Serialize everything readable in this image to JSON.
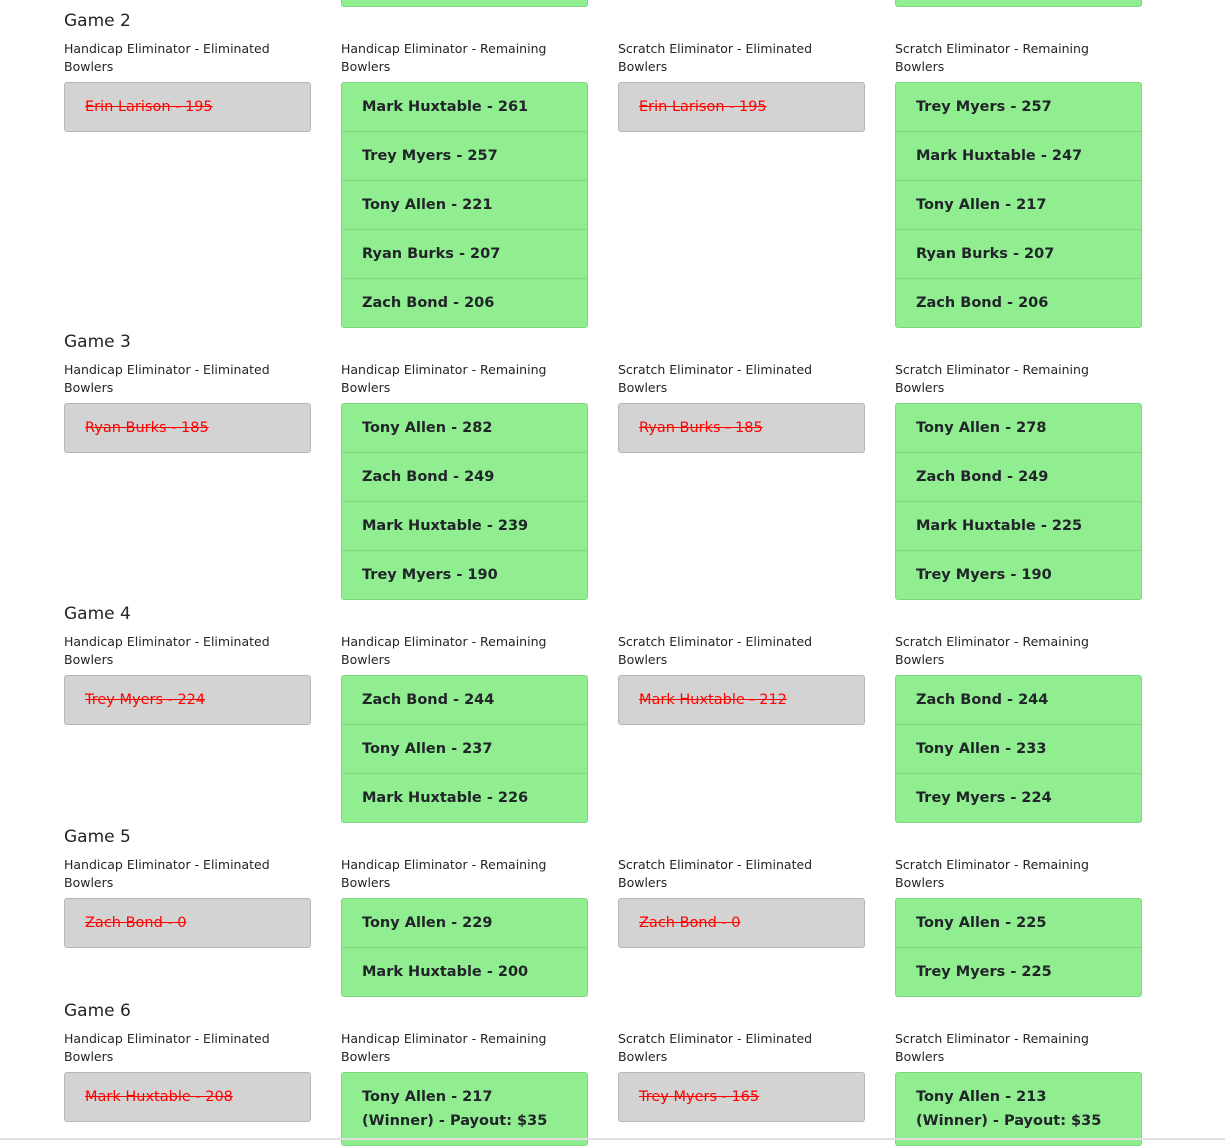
{
  "labels": {
    "h_elim": "Handicap Eliminator - Eliminated Bowlers",
    "h_rem": "Handicap Eliminator - Remaining Bowlers",
    "s_elim": "Scratch Eliminator - Eliminated Bowlers",
    "s_rem": "Scratch Eliminator - Remaining Bowlers"
  },
  "colors": {
    "remaining": "#90ee90",
    "eliminated_bg": "#d3d3d3",
    "eliminated_text": "#ff0000"
  },
  "games": [
    {
      "title": "Game 2",
      "h_elim": [
        "Erin Larison - 195"
      ],
      "h_rem": [
        "Mark Huxtable - 261",
        "Trey Myers - 257",
        "Tony Allen - 221",
        "Ryan Burks - 207",
        "Zach Bond - 206"
      ],
      "s_elim": [
        "Erin Larison - 195"
      ],
      "s_rem": [
        "Trey Myers - 257",
        "Mark Huxtable - 247",
        "Tony Allen - 217",
        "Ryan Burks - 207",
        "Zach Bond - 206"
      ]
    },
    {
      "title": "Game 3",
      "h_elim": [
        "Ryan Burks - 185"
      ],
      "h_rem": [
        "Tony Allen - 282",
        "Zach Bond - 249",
        "Mark Huxtable - 239",
        "Trey Myers - 190"
      ],
      "s_elim": [
        "Ryan Burks - 185"
      ],
      "s_rem": [
        "Tony Allen - 278",
        "Zach Bond - 249",
        "Mark Huxtable - 225",
        "Trey Myers - 190"
      ]
    },
    {
      "title": "Game 4",
      "h_elim": [
        "Trey Myers - 224"
      ],
      "h_rem": [
        "Zach Bond - 244",
        "Tony Allen - 237",
        "Mark Huxtable - 226"
      ],
      "s_elim": [
        "Mark Huxtable - 212"
      ],
      "s_rem": [
        "Zach Bond - 244",
        "Tony Allen - 233",
        "Trey Myers - 224"
      ]
    },
    {
      "title": "Game 5",
      "h_elim": [
        "Zach Bond - 0"
      ],
      "h_rem": [
        "Tony Allen - 229",
        "Mark Huxtable - 200"
      ],
      "s_elim": [
        "Zach Bond - 0"
      ],
      "s_rem": [
        "Tony Allen - 225",
        "Trey Myers - 225"
      ]
    },
    {
      "title": "Game 6",
      "h_elim": [
        "Mark Huxtable - 208"
      ],
      "h_rem": [
        "Tony Allen - 217 (Winner) - Payout: $35"
      ],
      "s_elim": [
        "Trey Myers - 165"
      ],
      "s_rem": [
        "Tony Allen - 213 (Winner) - Payout: $35"
      ]
    }
  ]
}
